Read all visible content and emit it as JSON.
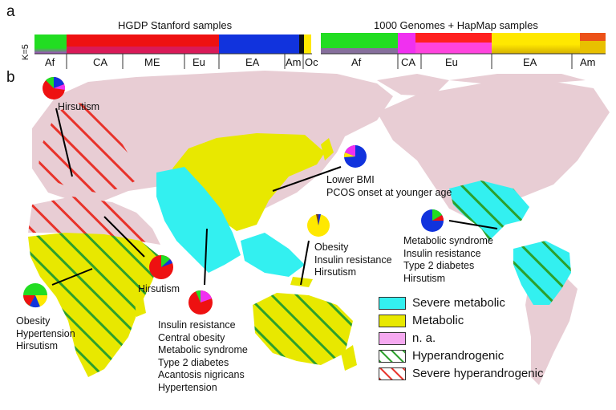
{
  "panel_a": {
    "letter": "a",
    "k_label": "K=5",
    "left_strip": {
      "title": "HGDP Stanford samples",
      "populations": [
        "Af",
        "CA",
        "ME",
        "Eu",
        "EA",
        "Am",
        "Oc"
      ]
    },
    "right_strip": {
      "title": "1000 Genomes + HapMap samples",
      "populations": [
        "Af",
        "CA",
        "Eu",
        "EA",
        "Am"
      ]
    }
  },
  "panel_b": {
    "letter": "b",
    "annotations": {
      "europe": [
        "Hirsutism"
      ],
      "east_asia": [
        "Lower BMI",
        "PCOS onset at younger age"
      ],
      "americas": [
        "Metabolic syndrome",
        "Insulin resistance",
        "Type 2 diabetes",
        "Hirsutism"
      ],
      "oceania": [
        "Obesity",
        "Insulin resistance",
        "Hirsutism"
      ],
      "middle_east": [
        "Hirsutism"
      ],
      "south_asia": [
        "Insulin resistance",
        "Central obesity",
        "Metabolic syndrome",
        "Type 2 diabetes",
        "Acantosis nigricans",
        "Hypertension"
      ],
      "africa": [
        "Obesity",
        "Hypertension",
        "Hirsutism"
      ]
    },
    "legend": [
      {
        "label": "Severe metabolic",
        "color": "#33f0f0",
        "pattern": "solid"
      },
      {
        "label": "Metabolic",
        "color": "#e8e800",
        "pattern": "solid"
      },
      {
        "label": "n. a.",
        "color": "#f5a9f0",
        "pattern": "solid"
      },
      {
        "label": "Hyperandrogenic",
        "color": "#2ca02c",
        "pattern": "hatch"
      },
      {
        "label": "Severe hyperandrogenic",
        "color": "#e8322a",
        "pattern": "hatch"
      }
    ],
    "colors": {
      "land": "#e8cdd4",
      "severe_metabolic": "#33f0f0",
      "metabolic": "#e8e800",
      "green_hatch": "#2ca02c",
      "red_hatch": "#e8322a"
    }
  }
}
